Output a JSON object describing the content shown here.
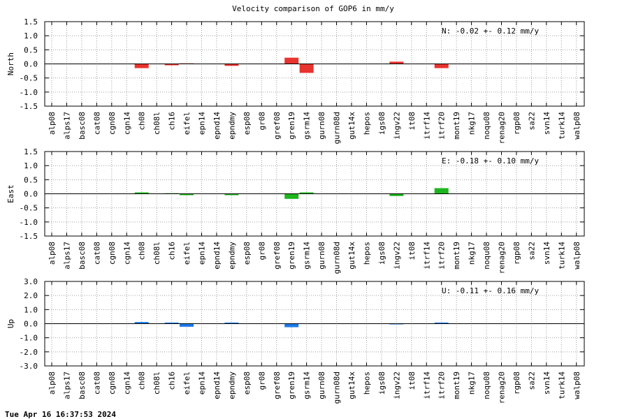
{
  "title": "Velocity comparison of GOP6 in mm/y",
  "footer": "Tue Apr 16 16:37:53 2024",
  "chart_data": [
    {
      "type": "bar",
      "ylabel": "North",
      "annotation": "N:  -0.02 +-  0.12 mm/y",
      "color": "#e8332e",
      "ylim": [
        -1.5,
        1.5
      ],
      "yticks": [
        "1.5",
        "1.0",
        "0.5",
        "0.0",
        "-0.5",
        "-1.0",
        "-1.5"
      ],
      "grid": true,
      "categories": [
        "alp08",
        "alps17",
        "basc08",
        "cat08",
        "cgn08",
        "cgn14",
        "ch08",
        "ch08l",
        "ch16",
        "eifel",
        "epn14",
        "epnd14",
        "epndmy",
        "esp08",
        "gr08",
        "gref08",
        "gren19",
        "gsrm14",
        "gurn08",
        "gurn08d",
        "gut14x",
        "hepos",
        "igs08",
        "ingv22",
        "it08",
        "itrf14",
        "itrf20",
        "mont19",
        "nkg17",
        "noqu08",
        "renag20",
        "rgp08",
        "sa22",
        "svn14",
        "turk14",
        "walp08"
      ],
      "values": [
        null,
        null,
        null,
        null,
        null,
        null,
        -0.15,
        null,
        -0.05,
        0.02,
        null,
        null,
        -0.07,
        null,
        null,
        null,
        0.22,
        -0.32,
        null,
        null,
        null,
        null,
        null,
        0.08,
        null,
        null,
        -0.15,
        null,
        null,
        null,
        null,
        null,
        null,
        null,
        null,
        null
      ]
    },
    {
      "type": "bar",
      "ylabel": "East",
      "annotation": "E:  -0.18 +-  0.10 mm/y",
      "color": "#1db51d",
      "ylim": [
        -1.5,
        1.5
      ],
      "yticks": [
        "1.5",
        "1.0",
        "0.5",
        "0.0",
        "-0.5",
        "-1.0",
        "-1.5"
      ],
      "grid": true,
      "categories": [
        "alp08",
        "alps17",
        "basc08",
        "cat08",
        "cgn08",
        "cgn14",
        "ch08",
        "ch08l",
        "ch16",
        "eifel",
        "epn14",
        "epnd14",
        "epndmy",
        "esp08",
        "gr08",
        "gref08",
        "gren19",
        "gsrm14",
        "gurn08",
        "gurn08d",
        "gut14x",
        "hepos",
        "igs08",
        "ingv22",
        "it08",
        "itrf14",
        "itrf20",
        "mont19",
        "nkg17",
        "noqu08",
        "renag20",
        "rgp08",
        "sa22",
        "svn14",
        "turk14",
        "walp08"
      ],
      "values": [
        null,
        null,
        null,
        null,
        null,
        null,
        0.05,
        null,
        0.02,
        -0.05,
        null,
        null,
        -0.05,
        null,
        null,
        null,
        -0.18,
        0.05,
        null,
        null,
        null,
        null,
        null,
        -0.08,
        null,
        null,
        0.2,
        null,
        null,
        null,
        null,
        null,
        null,
        null,
        null,
        null
      ]
    },
    {
      "type": "bar",
      "ylabel": "Up",
      "annotation": "U:  -0.11 +-  0.16 mm/y",
      "color": "#1c7ae8",
      "ylim": [
        -3.0,
        3.0
      ],
      "yticks": [
        "3.0",
        "2.0",
        "1.0",
        "0.0",
        "-1.0",
        "-2.0",
        "-3.0"
      ],
      "grid": true,
      "categories": [
        "alp08",
        "alps17",
        "basc08",
        "cat08",
        "cgn08",
        "cgn14",
        "ch08",
        "ch08l",
        "ch16",
        "eifel",
        "epn14",
        "epnd14",
        "epndmy",
        "esp08",
        "gr08",
        "gref08",
        "gren19",
        "gsrm14",
        "gurn08",
        "gurn08d",
        "gut14x",
        "hepos",
        "igs08",
        "ingv22",
        "it08",
        "itrf14",
        "itrf20",
        "mont19",
        "nkg17",
        "noqu08",
        "renag20",
        "rgp08",
        "sa22",
        "svn14",
        "turk14",
        "walp08"
      ],
      "values": [
        null,
        null,
        null,
        null,
        null,
        null,
        0.12,
        null,
        0.08,
        -0.22,
        null,
        null,
        0.08,
        null,
        null,
        null,
        -0.25,
        null,
        null,
        null,
        null,
        null,
        null,
        -0.05,
        null,
        null,
        0.08,
        null,
        null,
        null,
        null,
        null,
        null,
        null,
        null,
        null
      ]
    }
  ]
}
